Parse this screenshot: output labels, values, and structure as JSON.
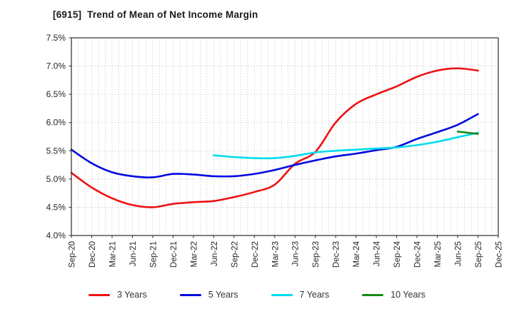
{
  "window": {
    "title": "[6915]  Trend of Mean of Net Income Margin"
  },
  "chart_data": {
    "type": "line",
    "title": "[6915]  Trend of Mean of Net Income Margin",
    "xlabel": "",
    "ylabel": "",
    "ylim": [
      4.0,
      7.5
    ],
    "ytick_step": 0.5,
    "ytick_labels": [
      "4.0%",
      "4.5%",
      "5.0%",
      "5.5%",
      "6.0%",
      "6.5%",
      "7.0%",
      "7.5%"
    ],
    "categories": [
      "Sep-20",
      "Dec-20",
      "Mar-21",
      "Jun-21",
      "Sep-21",
      "Dec-21",
      "Mar-22",
      "Jun-22",
      "Sep-22",
      "Dec-22",
      "Mar-23",
      "Jun-23",
      "Sep-23",
      "Dec-23",
      "Mar-24",
      "Jun-24",
      "Sep-24",
      "Dec-24",
      "Mar-25",
      "Jun-25",
      "Sep-25",
      "Dec-25"
    ],
    "grid": "dotted; vertical monthly lines, horizontal every 0.5%",
    "legend_position": "bottom-center",
    "series": [
      {
        "name": "3 Years",
        "color": "#ee1111",
        "start_index": 0,
        "values": [
          5.11,
          4.85,
          4.66,
          4.54,
          4.5,
          4.56,
          4.59,
          4.61,
          4.68,
          4.77,
          4.9,
          5.27,
          5.48,
          6.0,
          6.33,
          6.5,
          6.64,
          6.81,
          6.92,
          6.96,
          6.92
        ]
      },
      {
        "name": "5 Years",
        "color": "#0008e0",
        "start_index": 0,
        "values": [
          5.52,
          5.28,
          5.12,
          5.05,
          5.03,
          5.09,
          5.08,
          5.05,
          5.05,
          5.09,
          5.16,
          5.25,
          5.33,
          5.4,
          5.45,
          5.51,
          5.57,
          5.71,
          5.83,
          5.96,
          6.15
        ]
      },
      {
        "name": "7 Years",
        "color": "#00dcee",
        "start_index": 7,
        "values": [
          5.42,
          5.39,
          5.37,
          5.37,
          5.41,
          5.47,
          5.5,
          5.52,
          5.54,
          5.56,
          5.6,
          5.66,
          5.74,
          5.82
        ]
      },
      {
        "name": "10 Years",
        "color": "#168a16",
        "start_index": 19,
        "values": [
          5.84,
          5.8
        ]
      }
    ],
    "style": {
      "background": "#ffffff",
      "axis_color": "#2b2b2b",
      "grid_color": "#b5b5b5",
      "tick_label_color": "#262626",
      "title_color": "#1a1a1a"
    }
  }
}
